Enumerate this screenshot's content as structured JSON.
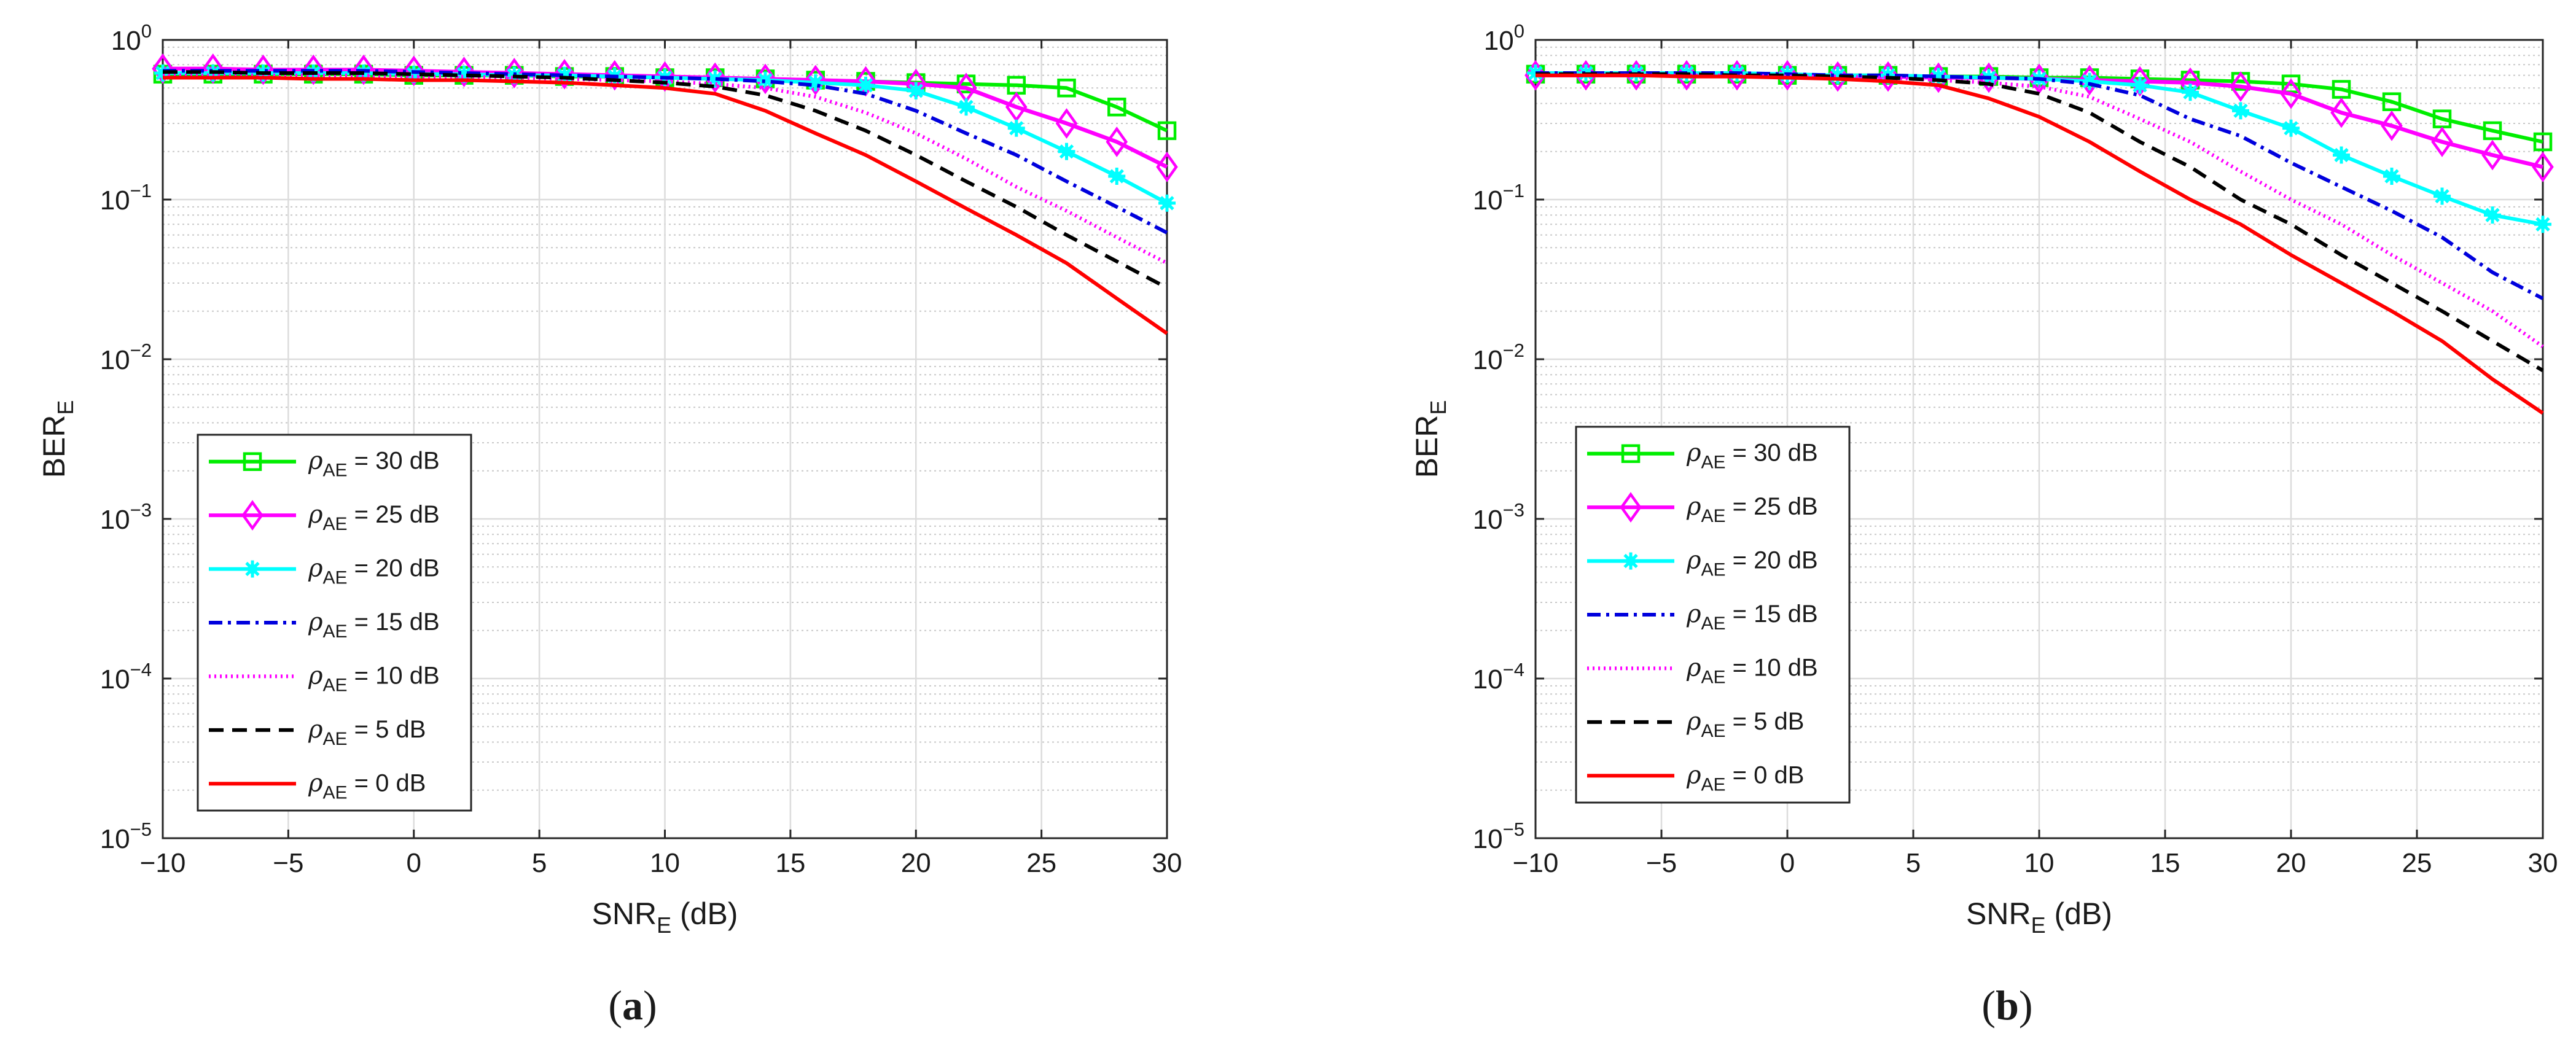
{
  "chart_data": [
    {
      "type": "line",
      "panel_label": "(a)",
      "xlabel": "SNR",
      "xlabel_sub": "E",
      "xlabel_unit": " (dB)",
      "ylabel": "BER",
      "ylabel_sub": "E",
      "xlim": [
        -10,
        30
      ],
      "ylim": [
        1e-05,
        1
      ],
      "yscale": "log",
      "grid": true,
      "legend_position": "lower-left",
      "xticks": [
        -10,
        -5,
        0,
        5,
        10,
        15,
        20,
        25,
        30
      ],
      "xtick_labels": [
        "−10",
        "−5",
        "0",
        "5",
        "10",
        "15",
        "20",
        "25",
        "30"
      ],
      "yticks": [
        {
          "base": "10",
          "exp": "0"
        },
        {
          "base": "10",
          "exp": "−1"
        },
        {
          "base": "10",
          "exp": "−2"
        },
        {
          "base": "10",
          "exp": "−3"
        },
        {
          "base": "10",
          "exp": "−4"
        },
        {
          "base": "10",
          "exp": "−5"
        }
      ],
      "x": [
        -10,
        -8,
        -6,
        -4,
        -2,
        0,
        2,
        4,
        6,
        8,
        10,
        12,
        14,
        16,
        18,
        20,
        22,
        24,
        26,
        28,
        30
      ],
      "series": [
        {
          "name": "ρAE = 30 dB",
          "legend_main": "ρ",
          "legend_sub": "AE",
          "legend_rest": " = 30 dB",
          "color": "#00ee00",
          "marker": "square",
          "dash": "",
          "values": [
            0.61,
            0.61,
            0.61,
            0.61,
            0.61,
            0.6,
            0.6,
            0.6,
            0.59,
            0.59,
            0.58,
            0.58,
            0.57,
            0.56,
            0.55,
            0.54,
            0.53,
            0.52,
            0.5,
            0.38,
            0.27
          ]
        },
        {
          "name": "ρAE = 25 dB",
          "legend_main": "ρ",
          "legend_sub": "AE",
          "legend_rest": " = 25 dB",
          "color": "#ff00ff",
          "marker": "diamond",
          "dash": "",
          "values": [
            0.66,
            0.66,
            0.65,
            0.65,
            0.65,
            0.64,
            0.63,
            0.62,
            0.61,
            0.6,
            0.59,
            0.58,
            0.57,
            0.56,
            0.55,
            0.53,
            0.5,
            0.38,
            0.3,
            0.23,
            0.16
          ]
        },
        {
          "name": "ρAE = 20 dB",
          "legend_main": "ρ",
          "legend_sub": "AE",
          "legend_rest": " = 20 dB",
          "color": "#00ffff",
          "marker": "asterisk",
          "dash": "",
          "values": [
            0.62,
            0.62,
            0.62,
            0.62,
            0.62,
            0.61,
            0.61,
            0.6,
            0.6,
            0.59,
            0.58,
            0.57,
            0.56,
            0.54,
            0.52,
            0.48,
            0.38,
            0.28,
            0.2,
            0.14,
            0.095
          ]
        },
        {
          "name": "ρAE = 15 dB",
          "legend_main": "ρ",
          "legend_sub": "AE",
          "legend_rest": " = 15 dB",
          "color": "#0000dd",
          "marker": "",
          "dash": "22,9,5,9",
          "values": [
            0.64,
            0.64,
            0.64,
            0.64,
            0.64,
            0.63,
            0.62,
            0.61,
            0.6,
            0.59,
            0.58,
            0.57,
            0.55,
            0.52,
            0.46,
            0.36,
            0.26,
            0.19,
            0.13,
            0.09,
            0.062
          ]
        },
        {
          "name": "ρAE = 10 dB",
          "legend_main": "ρ",
          "legend_sub": "AE",
          "legend_rest": " = 10 dB",
          "color": "#ff00ff",
          "marker": "",
          "dash": "3,6",
          "values": [
            0.6,
            0.6,
            0.6,
            0.6,
            0.6,
            0.59,
            0.59,
            0.58,
            0.57,
            0.56,
            0.55,
            0.53,
            0.5,
            0.44,
            0.35,
            0.26,
            0.18,
            0.12,
            0.085,
            0.058,
            0.04
          ]
        },
        {
          "name": "ρAE = 5 dB",
          "legend_main": "ρ",
          "legend_sub": "AE",
          "legend_rest": " = 5 dB",
          "color": "#000000",
          "marker": "",
          "dash": "24,14",
          "values": [
            0.63,
            0.63,
            0.62,
            0.62,
            0.62,
            0.61,
            0.6,
            0.59,
            0.58,
            0.56,
            0.54,
            0.51,
            0.45,
            0.36,
            0.27,
            0.19,
            0.13,
            0.09,
            0.06,
            0.041,
            0.028
          ]
        },
        {
          "name": "ρAE = 0 dB",
          "legend_main": "ρ",
          "legend_sub": "AE",
          "legend_rest": " = 0 dB",
          "color": "#ff0000",
          "marker": "",
          "dash": "",
          "values": [
            0.58,
            0.58,
            0.58,
            0.57,
            0.57,
            0.56,
            0.56,
            0.55,
            0.54,
            0.52,
            0.5,
            0.46,
            0.36,
            0.26,
            0.19,
            0.13,
            0.088,
            0.06,
            0.04,
            0.024,
            0.0145
          ]
        }
      ]
    },
    {
      "type": "line",
      "panel_label": "(b)",
      "xlabel": "SNR",
      "xlabel_sub": "E",
      "xlabel_unit": " (dB)",
      "ylabel": "BER",
      "ylabel_sub": "E",
      "xlim": [
        -10,
        30
      ],
      "ylim": [
        1e-05,
        1
      ],
      "yscale": "log",
      "grid": true,
      "legend_position": "lower-left",
      "xticks": [
        -10,
        -5,
        0,
        5,
        10,
        15,
        20,
        25,
        30
      ],
      "xtick_labels": [
        "−10",
        "−5",
        "0",
        "5",
        "10",
        "15",
        "20",
        "25",
        "30"
      ],
      "yticks": [
        {
          "base": "10",
          "exp": "0"
        },
        {
          "base": "10",
          "exp": "−1"
        },
        {
          "base": "10",
          "exp": "−2"
        },
        {
          "base": "10",
          "exp": "−3"
        },
        {
          "base": "10",
          "exp": "−4"
        },
        {
          "base": "10",
          "exp": "−5"
        }
      ],
      "x": [
        -10,
        -8,
        -6,
        -4,
        -2,
        0,
        2,
        4,
        6,
        8,
        10,
        12,
        14,
        16,
        18,
        20,
        22,
        24,
        26,
        28,
        30
      ],
      "series": [
        {
          "name": "ρAE = 30 dB",
          "legend_main": "ρ",
          "legend_sub": "AE",
          "legend_rest": " = 30 dB",
          "color": "#00ee00",
          "marker": "square",
          "dash": "",
          "values": [
            0.61,
            0.61,
            0.61,
            0.61,
            0.61,
            0.6,
            0.6,
            0.6,
            0.59,
            0.59,
            0.58,
            0.58,
            0.57,
            0.56,
            0.55,
            0.53,
            0.49,
            0.41,
            0.32,
            0.27,
            0.23
          ]
        },
        {
          "name": "ρAE = 25 dB",
          "legend_main": "ρ",
          "legend_sub": "AE",
          "legend_rest": " = 25 dB",
          "color": "#ff00ff",
          "marker": "diamond",
          "dash": "",
          "values": [
            0.6,
            0.6,
            0.6,
            0.6,
            0.6,
            0.6,
            0.59,
            0.59,
            0.58,
            0.58,
            0.57,
            0.56,
            0.55,
            0.54,
            0.51,
            0.46,
            0.35,
            0.29,
            0.23,
            0.19,
            0.16
          ]
        },
        {
          "name": "ρAE = 20 dB",
          "legend_main": "ρ",
          "legend_sub": "AE",
          "legend_rest": " = 20 dB",
          "color": "#00ffff",
          "marker": "asterisk",
          "dash": "",
          "values": [
            0.62,
            0.62,
            0.62,
            0.62,
            0.62,
            0.61,
            0.6,
            0.6,
            0.59,
            0.58,
            0.57,
            0.55,
            0.52,
            0.47,
            0.36,
            0.28,
            0.19,
            0.14,
            0.105,
            0.08,
            0.07
          ]
        },
        {
          "name": "ρAE = 15 dB",
          "legend_main": "ρ",
          "legend_sub": "AE",
          "legend_rest": " = 15 dB",
          "color": "#0000dd",
          "marker": "",
          "dash": "22,9,5,9",
          "values": [
            0.62,
            0.62,
            0.62,
            0.62,
            0.62,
            0.61,
            0.6,
            0.6,
            0.59,
            0.58,
            0.57,
            0.53,
            0.45,
            0.32,
            0.25,
            0.17,
            0.12,
            0.085,
            0.058,
            0.035,
            0.024
          ]
        },
        {
          "name": "ρAE = 10 dB",
          "legend_main": "ρ",
          "legend_sub": "AE",
          "legend_rest": " = 10 dB",
          "color": "#ff00ff",
          "marker": "",
          "dash": "3,6",
          "values": [
            0.6,
            0.6,
            0.6,
            0.6,
            0.6,
            0.59,
            0.59,
            0.58,
            0.56,
            0.54,
            0.51,
            0.44,
            0.32,
            0.23,
            0.15,
            0.1,
            0.07,
            0.045,
            0.03,
            0.02,
            0.012
          ]
        },
        {
          "name": "ρAE = 5 dB",
          "legend_main": "ρ",
          "legend_sub": "AE",
          "legend_rest": " = 5 dB",
          "color": "#000000",
          "marker": "",
          "dash": "24,14",
          "values": [
            0.61,
            0.61,
            0.61,
            0.61,
            0.6,
            0.6,
            0.59,
            0.58,
            0.56,
            0.53,
            0.46,
            0.35,
            0.23,
            0.16,
            0.1,
            0.07,
            0.045,
            0.03,
            0.02,
            0.013,
            0.0085
          ]
        },
        {
          "name": "ρAE = 0 dB",
          "legend_main": "ρ",
          "legend_sub": "AE",
          "legend_rest": " = 0 dB",
          "color": "#ff0000",
          "marker": "",
          "dash": "",
          "values": [
            0.6,
            0.6,
            0.6,
            0.59,
            0.59,
            0.58,
            0.57,
            0.55,
            0.52,
            0.43,
            0.33,
            0.23,
            0.15,
            0.1,
            0.07,
            0.045,
            0.03,
            0.02,
            0.013,
            0.0075,
            0.0046
          ]
        }
      ]
    }
  ]
}
